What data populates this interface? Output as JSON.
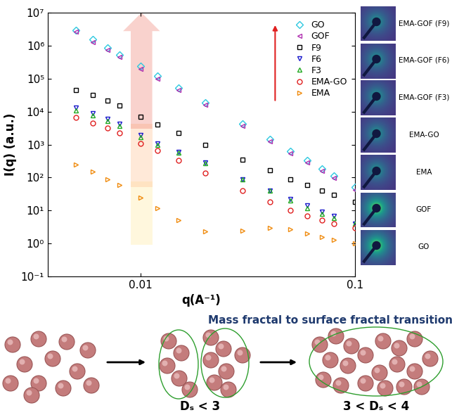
{
  "chart_data": {
    "type": "scatter",
    "x_label": "q(A⁻¹)",
    "y_label": "I(q) (a.u.)",
    "log": true,
    "legend": "upper right",
    "xlim": [
      0.0037,
      0.1
    ],
    "ylim": [
      0.1,
      10000000
    ],
    "xticks": [
      0.01,
      0.1
    ],
    "yticks": [
      {
        "value": 0.1,
        "label": "10⁻¹"
      },
      {
        "value": 1,
        "label": "10⁰"
      },
      {
        "value": 10,
        "label": "10¹"
      },
      {
        "value": 100,
        "label": "10²"
      },
      {
        "value": 1000,
        "label": "10³"
      },
      {
        "value": 10000,
        "label": "10⁴"
      },
      {
        "value": 100000,
        "label": "10⁵"
      },
      {
        "value": 1000000,
        "label": "10⁶"
      },
      {
        "value": 10000000,
        "label": "10⁷"
      }
    ],
    "x": [
      0.005,
      0.006,
      0.007,
      0.008,
      0.01,
      0.012,
      0.015,
      0.02,
      0.03,
      0.04,
      0.05,
      0.06,
      0.07,
      0.08,
      0.1
    ],
    "series": [
      {
        "name": "GO",
        "color": "#2ec8e0",
        "marker": "diamond",
        "line_style": "none",
        "values": [
          3000000,
          1540000,
          870000,
          530000,
          235000,
          120000,
          53000,
          18500,
          4200,
          1460,
          640,
          330,
          187,
          114,
          50
        ]
      },
      {
        "name": "GOF",
        "color": "#b030b0",
        "marker": "triangle_left",
        "line_style": "none",
        "values": [
          2600000,
          1300000,
          740000,
          450000,
          200000,
          100000,
          45000,
          15700,
          3600,
          1240,
          545,
          280,
          160,
          97,
          43
        ]
      },
      {
        "name": "F9",
        "color": "#000000",
        "marker": "square",
        "line_style": "none",
        "values": [
          45000,
          32000,
          22000,
          15000,
          7000,
          4000,
          2200,
          1000,
          350,
          170,
          90,
          60,
          40,
          30,
          18
        ]
      },
      {
        "name": "F6",
        "color": "#1a1acc",
        "marker": "triangle_down",
        "line_style": "none",
        "values": [
          13000,
          9000,
          6000,
          4200,
          1900,
          1100,
          600,
          280,
          90,
          40,
          22,
          14,
          9,
          7,
          4
        ]
      },
      {
        "name": "F3",
        "color": "#22aa22",
        "marker": "triangle_up",
        "line_style": "none",
        "values": [
          11000,
          7500,
          5200,
          3600,
          1700,
          1000,
          560,
          270,
          90,
          40,
          20,
          12,
          8,
          6,
          4
        ]
      },
      {
        "name": "EMA-GO",
        "color": "#e02020",
        "marker": "circle",
        "line_style": "none",
        "values": [
          6500,
          4500,
          3200,
          2300,
          1100,
          650,
          330,
          140,
          40,
          18,
          10,
          7,
          5,
          4,
          3
        ]
      },
      {
        "name": "EMA",
        "color": "#f08c10",
        "marker": "triangle_right",
        "line_style": "none",
        "values": [
          250,
          150,
          90,
          60,
          25,
          12,
          5,
          2.3,
          2.4,
          3.0,
          2.7,
          2.0,
          1.6,
          1.3,
          1.0
        ]
      }
    ]
  },
  "side_panel": {
    "labels": [
      "EMA-GOF (F9)",
      "EMA-GOF (F6)",
      "EMA-GOF (F3)",
      "EMA-GO",
      "EMA",
      "GOF",
      "GO"
    ]
  },
  "schematic": {
    "title": "Mass fractal to surface fractal transition",
    "labels": [
      "Dₛ < 3",
      "3 < Dₛ < 4"
    ]
  }
}
